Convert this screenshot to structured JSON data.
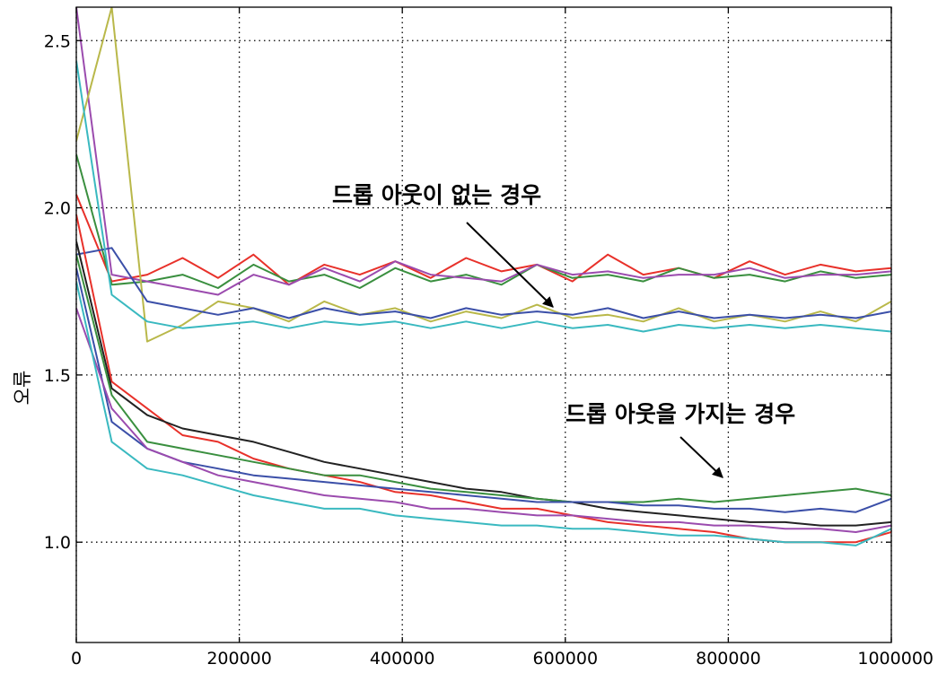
{
  "chart_data": {
    "type": "line",
    "title": "",
    "xlabel": "",
    "ylabel": "오류",
    "xlim": [
      0,
      1000000
    ],
    "ylim": [
      0.7,
      2.6
    ],
    "x_ticks": [
      "0",
      "200000",
      "400000",
      "600000",
      "800000",
      "1000000"
    ],
    "y_ticks": [
      "1.0",
      "1.5",
      "2.0",
      "2.5"
    ],
    "grid": true,
    "legend": "none",
    "annotations": [
      {
        "text": "드롭 아웃이 없는 경우",
        "target_x": 600000,
        "target_y": 1.7
      },
      {
        "text": "드롭 아웃을 가지는 경우",
        "target_x": 800000,
        "target_y": 1.2
      }
    ],
    "series": [
      {
        "color": "#e8312a",
        "values": [
          2.04,
          1.78,
          1.8,
          1.85,
          1.79,
          1.86,
          1.77,
          1.83,
          1.8,
          1.84,
          1.79,
          1.85,
          1.81,
          1.83,
          1.78,
          1.86,
          1.8,
          1.82,
          1.79,
          1.84,
          1.8,
          1.83,
          1.81,
          1.82
        ]
      },
      {
        "color": "#3a8f3f",
        "values": [
          2.16,
          1.77,
          1.78,
          1.8,
          1.76,
          1.83,
          1.78,
          1.8,
          1.76,
          1.82,
          1.78,
          1.8,
          1.77,
          1.83,
          1.79,
          1.8,
          1.78,
          1.82,
          1.79,
          1.8,
          1.78,
          1.81,
          1.79,
          1.8
        ]
      },
      {
        "color": "#9b4bae",
        "values": [
          2.6,
          1.8,
          1.78,
          1.76,
          1.74,
          1.8,
          1.77,
          1.82,
          1.78,
          1.84,
          1.8,
          1.79,
          1.78,
          1.83,
          1.8,
          1.81,
          1.79,
          1.8,
          1.8,
          1.82,
          1.79,
          1.8,
          1.8,
          1.81
        ]
      },
      {
        "color": "#b9b84a",
        "values": [
          2.2,
          2.6,
          1.6,
          1.65,
          1.72,
          1.7,
          1.66,
          1.72,
          1.68,
          1.7,
          1.66,
          1.69,
          1.67,
          1.71,
          1.67,
          1.68,
          1.66,
          1.7,
          1.66,
          1.68,
          1.66,
          1.69,
          1.66,
          1.72
        ]
      },
      {
        "color": "#3b4fa8",
        "values": [
          1.86,
          1.88,
          1.72,
          1.7,
          1.68,
          1.7,
          1.67,
          1.7,
          1.68,
          1.69,
          1.67,
          1.7,
          1.68,
          1.69,
          1.68,
          1.7,
          1.67,
          1.69,
          1.67,
          1.68,
          1.67,
          1.68,
          1.67,
          1.69
        ]
      },
      {
        "color": "#3ab9c0",
        "values": [
          2.44,
          1.74,
          1.66,
          1.64,
          1.65,
          1.66,
          1.64,
          1.66,
          1.65,
          1.66,
          1.64,
          1.66,
          1.64,
          1.66,
          1.64,
          1.65,
          1.63,
          1.65,
          1.64,
          1.65,
          1.64,
          1.65,
          1.64,
          1.63
        ]
      },
      {
        "color": "#e8312a",
        "values": [
          1.98,
          1.48,
          1.4,
          1.32,
          1.3,
          1.25,
          1.22,
          1.2,
          1.18,
          1.15,
          1.14,
          1.12,
          1.1,
          1.1,
          1.08,
          1.06,
          1.05,
          1.04,
          1.03,
          1.01,
          1.0,
          1.0,
          1.0,
          1.03
        ]
      },
      {
        "color": "#222222",
        "values": [
          1.9,
          1.46,
          1.38,
          1.34,
          1.32,
          1.3,
          1.27,
          1.24,
          1.22,
          1.2,
          1.18,
          1.16,
          1.15,
          1.13,
          1.12,
          1.1,
          1.09,
          1.08,
          1.07,
          1.06,
          1.06,
          1.05,
          1.05,
          1.06
        ]
      },
      {
        "color": "#3a8f3f",
        "values": [
          1.86,
          1.44,
          1.3,
          1.28,
          1.26,
          1.24,
          1.22,
          1.2,
          1.2,
          1.18,
          1.16,
          1.15,
          1.14,
          1.13,
          1.12,
          1.12,
          1.12,
          1.13,
          1.12,
          1.13,
          1.14,
          1.15,
          1.16,
          1.14
        ]
      },
      {
        "color": "#3b4fa8",
        "values": [
          1.82,
          1.36,
          1.28,
          1.24,
          1.22,
          1.2,
          1.19,
          1.18,
          1.17,
          1.16,
          1.15,
          1.14,
          1.13,
          1.12,
          1.12,
          1.12,
          1.11,
          1.11,
          1.1,
          1.1,
          1.09,
          1.1,
          1.09,
          1.13
        ]
      },
      {
        "color": "#9b4bae",
        "values": [
          1.7,
          1.4,
          1.28,
          1.24,
          1.2,
          1.18,
          1.16,
          1.14,
          1.13,
          1.12,
          1.1,
          1.1,
          1.09,
          1.08,
          1.08,
          1.07,
          1.06,
          1.06,
          1.05,
          1.05,
          1.04,
          1.04,
          1.03,
          1.05
        ]
      },
      {
        "color": "#3ab9c0",
        "values": [
          1.78,
          1.3,
          1.22,
          1.2,
          1.17,
          1.14,
          1.12,
          1.1,
          1.1,
          1.08,
          1.07,
          1.06,
          1.05,
          1.05,
          1.04,
          1.04,
          1.03,
          1.02,
          1.02,
          1.01,
          1.0,
          1.0,
          0.99,
          1.04
        ]
      }
    ]
  }
}
